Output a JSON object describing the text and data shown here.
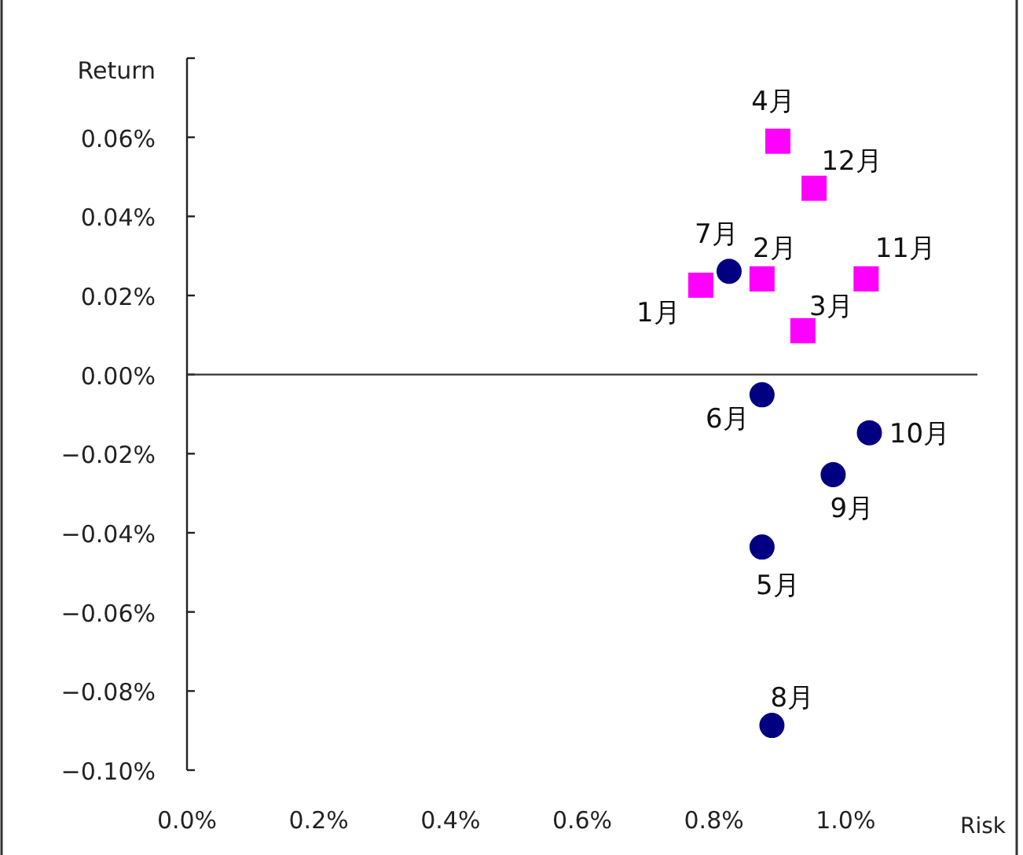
{
  "chart_data": {
    "type": "scatter",
    "xlabel": "Risk",
    "ylabel": "Return",
    "xlim": [
      0,
      1.2
    ],
    "ylim": [
      -0.1,
      0.08
    ],
    "xticks": [
      {
        "value": 0,
        "label": "0.0%"
      },
      {
        "value": 0.2,
        "label": "0.2%"
      },
      {
        "value": 0.4,
        "label": "0.4%"
      },
      {
        "value": 0.6,
        "label": "0.6%"
      },
      {
        "value": 0.8,
        "label": "0.8%"
      },
      {
        "value": 1.0,
        "label": "1.0%"
      }
    ],
    "yticks": [
      {
        "value": 0.08,
        "label": null
      },
      {
        "value": 0.06,
        "label": "0.06%"
      },
      {
        "value": 0.04,
        "label": "0.04%"
      },
      {
        "value": 0.02,
        "label": "0.02%"
      },
      {
        "value": 0,
        "label": "0.00%"
      },
      {
        "value": -0.02,
        "label": "−0.02%"
      },
      {
        "value": -0.04,
        "label": "−0.04%"
      },
      {
        "value": -0.06,
        "label": "−0.06%"
      },
      {
        "value": -0.08,
        "label": "−0.08%"
      },
      {
        "value": -0.1,
        "label": "−0.10%"
      }
    ],
    "ref_lines": [
      {
        "axis": "y",
        "value": 0,
        "label": null,
        "color": "#333333"
      }
    ],
    "series": [
      {
        "color": "#ff00ff",
        "marker": "square",
        "x": [
          0.78,
          0.873,
          0.935,
          0.897,
          1.031,
          0.952
        ],
        "values": [
          0.0226,
          0.0242,
          0.0111,
          0.059,
          0.0242,
          0.0471
        ]
      },
      {
        "color": "#000080",
        "marker": "circle",
        "x": [
          0.873,
          0.873,
          0.823,
          0.888,
          0.981,
          1.036
        ],
        "values": [
          -0.0436,
          -0.0051,
          0.0261,
          -0.0887,
          -0.0253,
          -0.0147
        ]
      }
    ],
    "annotations": [
      {
        "text": "1月",
        "x": 0.78,
        "y": 0.0226
      },
      {
        "text": "2月",
        "x": 0.873,
        "y": 0.0242
      },
      {
        "text": "3月",
        "x": 0.935,
        "y": 0.0111
      },
      {
        "text": "4月",
        "x": 0.897,
        "y": 0.059
      },
      {
        "text": "5月",
        "x": 0.873,
        "y": -0.0436
      },
      {
        "text": "6月",
        "x": 0.873,
        "y": -0.0051
      },
      {
        "text": "7月",
        "x": 0.823,
        "y": 0.0261
      },
      {
        "text": "8月",
        "x": 0.888,
        "y": -0.0887
      },
      {
        "text": "9月",
        "x": 0.981,
        "y": -0.0253
      },
      {
        "text": "10月",
        "x": 1.036,
        "y": -0.0147
      },
      {
        "text": "11月",
        "x": 1.031,
        "y": 0.0242
      },
      {
        "text": "12月",
        "x": 0.952,
        "y": 0.0471
      }
    ]
  }
}
